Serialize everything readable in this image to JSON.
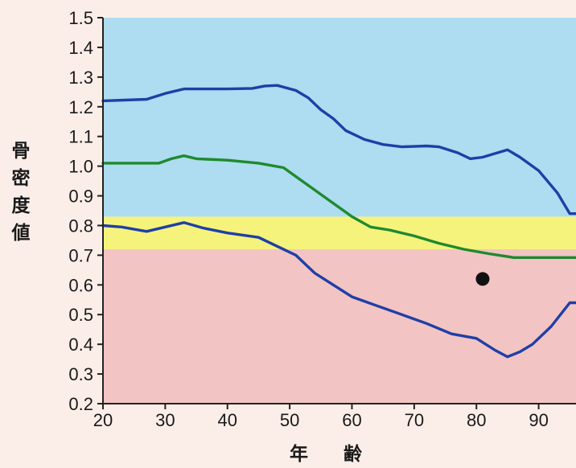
{
  "chart_data": {
    "type": "line",
    "title": "",
    "xlabel": "年 齢",
    "ylabel": "骨密度値",
    "xlim": [
      20,
      96
    ],
    "ylim": [
      0.2,
      1.5
    ],
    "x_ticks": [
      "20",
      "30",
      "40",
      "50",
      "60",
      "70",
      "80",
      "90"
    ],
    "y_ticks": [
      "1.5",
      "1.4",
      "1.3",
      "1.2",
      "1.1",
      "1.0",
      "0.9",
      "0.8",
      "0.7",
      "0.6",
      "0.5",
      "0.4",
      "0.3",
      "0.2"
    ],
    "grid": false,
    "bands": [
      {
        "from": 0.2,
        "to": 0.72,
        "color": "#f3c4c4"
      },
      {
        "from": 0.72,
        "to": 0.83,
        "color": "#f5f37c"
      },
      {
        "from": 0.83,
        "to": 1.5,
        "color": "#aedcf0"
      }
    ],
    "series": [
      {
        "color": "#1f3fa6",
        "points": [
          [
            20,
            1.22
          ],
          [
            27,
            1.225
          ],
          [
            30,
            1.245
          ],
          [
            33,
            1.26
          ],
          [
            40,
            1.26
          ],
          [
            44,
            1.262
          ],
          [
            46,
            1.27
          ],
          [
            48,
            1.272
          ],
          [
            51,
            1.255
          ],
          [
            53,
            1.23
          ],
          [
            55,
            1.19
          ],
          [
            57,
            1.16
          ],
          [
            59,
            1.12
          ],
          [
            62,
            1.09
          ],
          [
            65,
            1.073
          ],
          [
            68,
            1.065
          ],
          [
            72,
            1.068
          ],
          [
            74,
            1.065
          ],
          [
            77,
            1.045
          ],
          [
            79,
            1.025
          ],
          [
            81,
            1.03
          ],
          [
            85,
            1.055
          ],
          [
            87,
            1.03
          ],
          [
            90,
            0.985
          ],
          [
            93,
            0.91
          ],
          [
            95,
            0.84
          ],
          [
            96,
            0.84
          ]
        ]
      },
      {
        "color": "#1e8a2e",
        "points": [
          [
            20,
            1.01
          ],
          [
            25,
            1.01
          ],
          [
            29,
            1.01
          ],
          [
            31,
            1.025
          ],
          [
            33,
            1.035
          ],
          [
            35,
            1.025
          ],
          [
            40,
            1.02
          ],
          [
            45,
            1.01
          ],
          [
            49,
            0.995
          ],
          [
            52,
            0.95
          ],
          [
            56,
            0.89
          ],
          [
            60,
            0.83
          ],
          [
            63,
            0.795
          ],
          [
            66,
            0.785
          ],
          [
            70,
            0.765
          ],
          [
            74,
            0.74
          ],
          [
            78,
            0.72
          ],
          [
            82,
            0.705
          ],
          [
            86,
            0.692
          ],
          [
            90,
            0.692
          ],
          [
            96,
            0.692
          ]
        ]
      },
      {
        "color": "#1f3fa6",
        "points": [
          [
            20,
            0.8
          ],
          [
            23,
            0.795
          ],
          [
            27,
            0.78
          ],
          [
            30,
            0.795
          ],
          [
            33,
            0.81
          ],
          [
            36,
            0.792
          ],
          [
            40,
            0.775
          ],
          [
            45,
            0.76
          ],
          [
            48,
            0.73
          ],
          [
            51,
            0.7
          ],
          [
            54,
            0.64
          ],
          [
            57,
            0.6
          ],
          [
            60,
            0.56
          ],
          [
            64,
            0.53
          ],
          [
            68,
            0.5
          ],
          [
            72,
            0.47
          ],
          [
            76,
            0.435
          ],
          [
            80,
            0.42
          ],
          [
            83,
            0.38
          ],
          [
            85,
            0.358
          ],
          [
            87,
            0.375
          ],
          [
            89,
            0.4
          ],
          [
            92,
            0.46
          ],
          [
            95,
            0.54
          ],
          [
            96,
            0.54
          ]
        ]
      }
    ],
    "marker": {
      "x": 81,
      "y": 0.62,
      "color": "#111111"
    }
  }
}
